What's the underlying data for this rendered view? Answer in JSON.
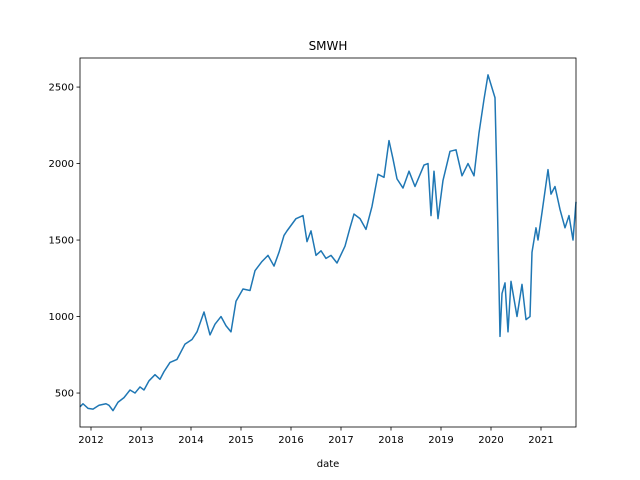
{
  "chart_data": {
    "type": "line",
    "title": "SMWH",
    "x_label": "date",
    "x": [
      2011.78,
      2011.84,
      2011.94,
      2012.04,
      2012.16,
      2012.3,
      2012.36,
      2012.44,
      2012.54,
      2012.66,
      2012.78,
      2012.88,
      2012.98,
      2013.06,
      2013.16,
      2013.28,
      2013.38,
      2013.46,
      2013.58,
      2013.72,
      2013.88,
      2014.02,
      2014.12,
      2014.26,
      2014.38,
      2014.48,
      2014.6,
      2014.7,
      2014.8,
      2014.9,
      2015.04,
      2015.18,
      2015.28,
      2015.42,
      2015.54,
      2015.66,
      2015.76,
      2015.86,
      2015.92,
      2016.1,
      2016.24,
      2016.32,
      2016.4,
      2016.5,
      2016.6,
      2016.7,
      2016.8,
      2016.92,
      2017.08,
      2017.18,
      2017.26,
      2017.38,
      2017.5,
      2017.62,
      2017.74,
      2017.86,
      2017.96,
      2018.04,
      2018.12,
      2018.24,
      2018.36,
      2018.48,
      2018.66,
      2018.74,
      2018.8,
      2018.86,
      2018.94,
      2019.04,
      2019.18,
      2019.3,
      2019.42,
      2019.54,
      2019.66,
      2019.76,
      2019.86,
      2019.94,
      2020.08,
      2020.12,
      2020.18,
      2020.22,
      2020.28,
      2020.34,
      2020.4,
      2020.52,
      2020.62,
      2020.7,
      2020.78,
      2020.82,
      2020.9,
      2020.94,
      2021.02,
      2021.14,
      2021.2,
      2021.28,
      2021.38,
      2021.48,
      2021.56,
      2021.64,
      2021.7
    ],
    "series": [
      {
        "name": "SMWH",
        "color": "#1f77b4",
        "values": [
          410,
          430,
          400,
          395,
          420,
          430,
          420,
          385,
          440,
          470,
          520,
          500,
          540,
          520,
          580,
          620,
          590,
          640,
          700,
          720,
          820,
          850,
          900,
          1030,
          880,
          950,
          1000,
          940,
          900,
          1100,
          1180,
          1170,
          1300,
          1360,
          1400,
          1330,
          1420,
          1530,
          1560,
          1640,
          1660,
          1490,
          1560,
          1400,
          1430,
          1380,
          1400,
          1350,
          1460,
          1580,
          1670,
          1640,
          1570,
          1720,
          1930,
          1910,
          2150,
          2030,
          1900,
          1840,
          1950,
          1850,
          1990,
          2000,
          1660,
          1950,
          1640,
          1890,
          2080,
          2090,
          1920,
          2000,
          1920,
          2200,
          2420,
          2580,
          2430,
          1860,
          870,
          1150,
          1220,
          900,
          1230,
          1000,
          1210,
          980,
          1000,
          1420,
          1580,
          1500,
          1680,
          1960,
          1800,
          1850,
          1700,
          1580,
          1660,
          1500,
          1750
        ]
      }
    ],
    "xlim": [
      2011.78,
      2021.7
    ],
    "xticks": [
      2012,
      2013,
      2014,
      2015,
      2016,
      2017,
      2018,
      2019,
      2020,
      2021
    ],
    "ylim": [
      278,
      2690
    ],
    "yticks": [
      500,
      1000,
      1500,
      2000,
      2500
    ]
  }
}
